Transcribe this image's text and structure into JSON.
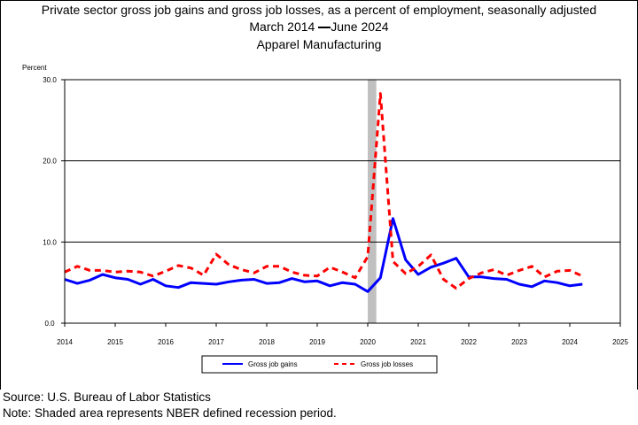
{
  "header": {
    "title": "Private sector gross job gains and gross job losses, as a percent of employment, seasonally adjusted",
    "subtitle_start": "March 2014",
    "subtitle_end": "June 2024",
    "industry": "Apparel Manufacturing"
  },
  "footer": {
    "source": "Source: U.S. Bureau of Labor Statistics",
    "note": "Note: Shaded area represents NBER defined recession period."
  },
  "chart_data": {
    "type": "line",
    "ylabel": "Percent",
    "xlim": [
      2014,
      2025
    ],
    "ylim": [
      0,
      30
    ],
    "y_ticks": [
      "0.0",
      "10.0",
      "20.0",
      "30.0"
    ],
    "x_ticks": [
      "2014",
      "2015",
      "2016",
      "2017",
      "2018",
      "2019",
      "2020",
      "2021",
      "2022",
      "2023",
      "2024",
      "2025"
    ],
    "grid": "horizontal",
    "legend_position": "bottom",
    "recession": {
      "start": 2020.0,
      "end": 2020.17
    },
    "colors": {
      "gains": "#0000ff",
      "losses": "#ff0000",
      "recession": "#c0c0c0"
    },
    "x": [
      2014.0,
      2014.25,
      2014.5,
      2014.75,
      2015.0,
      2015.25,
      2015.5,
      2015.75,
      2016.0,
      2016.25,
      2016.5,
      2016.75,
      2017.0,
      2017.25,
      2017.5,
      2017.75,
      2018.0,
      2018.25,
      2018.5,
      2018.75,
      2019.0,
      2019.25,
      2019.5,
      2019.75,
      2020.0,
      2020.25,
      2020.5,
      2020.75,
      2021.0,
      2021.25,
      2021.5,
      2021.75,
      2022.0,
      2022.25,
      2022.5,
      2022.75,
      2023.0,
      2023.25,
      2023.5,
      2023.75,
      2024.0,
      2024.25
    ],
    "series": [
      {
        "name": "Gross job gains",
        "style": "solid",
        "values": [
          5.4,
          4.9,
          5.3,
          6.0,
          5.6,
          5.4,
          4.8,
          5.4,
          4.6,
          4.4,
          5.0,
          4.9,
          4.8,
          5.1,
          5.3,
          5.4,
          4.9,
          5.0,
          5.5,
          5.1,
          5.2,
          4.6,
          5.0,
          4.8,
          3.9,
          5.6,
          12.9,
          7.8,
          6.0,
          6.9,
          7.4,
          8.0,
          5.7,
          5.7,
          5.5,
          5.4,
          4.8,
          4.5,
          5.2,
          5.0,
          4.6,
          4.8
        ]
      },
      {
        "name": "Gross job losses",
        "style": "dashed",
        "values": [
          6.3,
          7.0,
          6.5,
          6.5,
          6.3,
          6.4,
          6.3,
          5.8,
          6.4,
          7.1,
          6.8,
          5.9,
          8.5,
          7.2,
          6.6,
          6.2,
          7.0,
          7.0,
          6.3,
          5.9,
          5.8,
          6.9,
          6.3,
          5.6,
          8.2,
          28.3,
          7.6,
          6.1,
          7.0,
          8.4,
          5.4,
          4.3,
          5.5,
          6.2,
          6.6,
          5.9,
          6.5,
          7.0,
          5.7,
          6.4,
          6.5,
          5.8
        ]
      }
    ]
  }
}
